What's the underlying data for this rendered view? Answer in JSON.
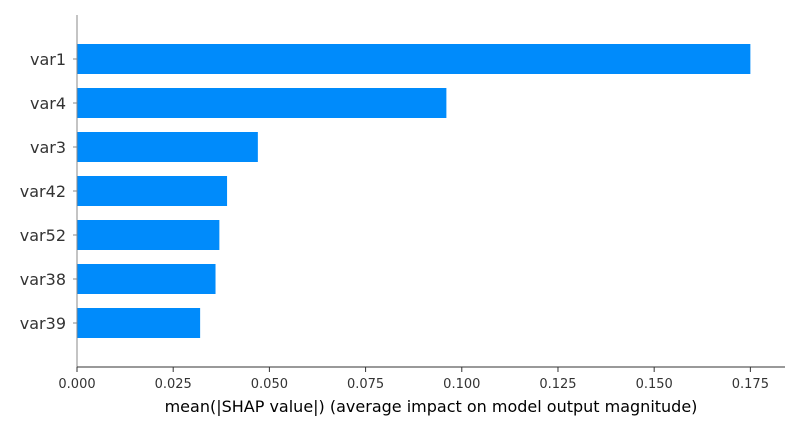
{
  "chart_data": {
    "type": "bar",
    "orientation": "horizontal",
    "title": "",
    "xlabel": "mean(|SHAP value|) (average impact on model output magnitude)",
    "ylabel": "",
    "categories": [
      "var1",
      "var4",
      "var3",
      "var42",
      "var52",
      "var38",
      "var39"
    ],
    "values": [
      0.175,
      0.096,
      0.047,
      0.039,
      0.037,
      0.036,
      0.032
    ],
    "xlim": [
      0.0,
      0.184
    ],
    "xticks": [
      "0.000",
      "0.025",
      "0.050",
      "0.075",
      "0.100",
      "0.125",
      "0.150",
      "0.175"
    ],
    "bar_color": "#008bfb",
    "grid": false,
    "legend": "none"
  }
}
